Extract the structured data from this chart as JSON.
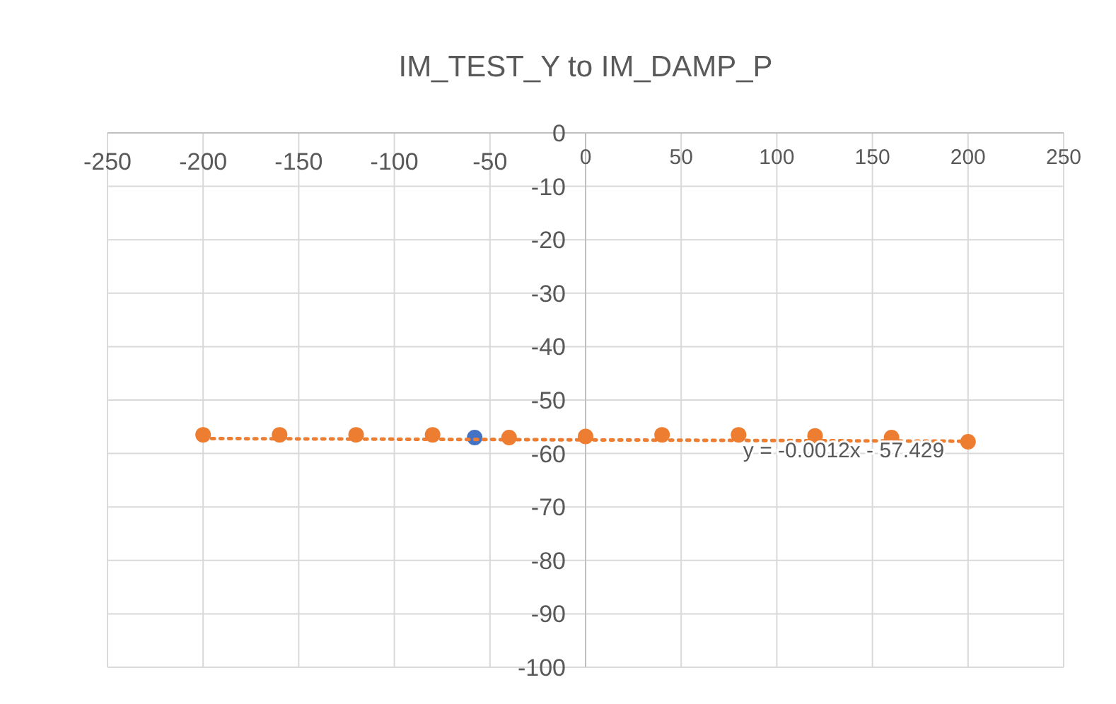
{
  "chart_data": {
    "type": "scatter",
    "title": "IM_TEST_Y to IM_DAMP_P",
    "xlim": [
      -250,
      250
    ],
    "ylim": [
      -100,
      0
    ],
    "xticks": [
      -250,
      -200,
      -150,
      -100,
      -50,
      0,
      50,
      100,
      150,
      200,
      250
    ],
    "yticks": [
      0,
      -10,
      -20,
      -30,
      -40,
      -50,
      -60,
      -70,
      -80,
      -90,
      -100
    ],
    "grid": true,
    "marker": "circle",
    "series": [
      {
        "color": "#ed7d31",
        "x": [
          -200,
          -160,
          -120,
          -80,
          -40,
          0,
          40,
          80,
          120,
          160,
          200
        ],
        "values": [
          -56.5,
          -56.5,
          -56.5,
          -56.5,
          -57,
          -56.8,
          -56.5,
          -56.5,
          -56.7,
          -57,
          -57.8
        ]
      },
      {
        "color": "#4472c4",
        "x": [
          -58
        ],
        "values": [
          -57
        ]
      },
      {
        "type": "line",
        "color": "#ed7d31",
        "line_style": "dotted",
        "marker": "none",
        "x": [
          -200,
          200
        ],
        "values": [
          -57.2,
          -57.7
        ]
      }
    ],
    "annotations": [
      {
        "text": "y = -0.0012x - 57.429",
        "x": 135,
        "y": -57.6
      }
    ]
  }
}
